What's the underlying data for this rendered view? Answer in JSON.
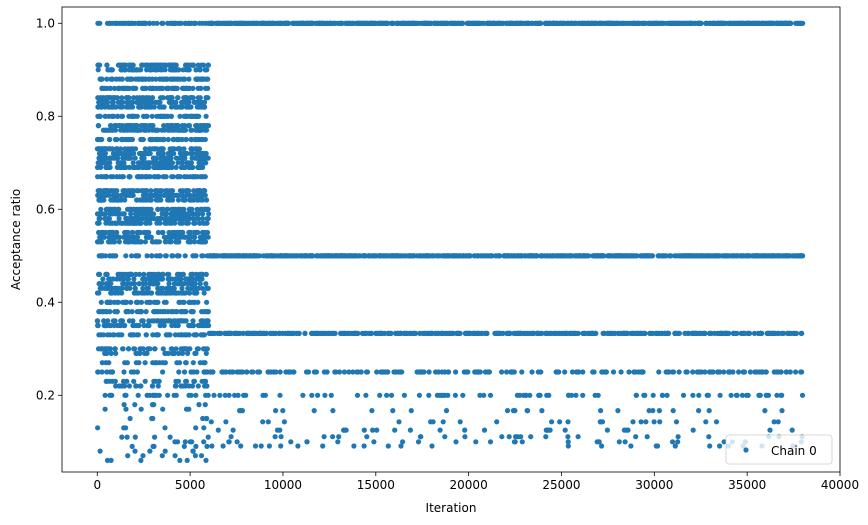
{
  "chart_data": {
    "type": "scatter",
    "xlabel": "Iteration",
    "ylabel": "Acceptance ratio",
    "xlim": [
      -1900,
      40000
    ],
    "ylim": [
      0.035,
      1.035
    ],
    "xticks": [
      0,
      5000,
      10000,
      15000,
      20000,
      25000,
      30000,
      35000,
      40000
    ],
    "xtick_labels": [
      "0",
      "5000",
      "10000",
      "15000",
      "20000",
      "25000",
      "30000",
      "35000",
      "40000"
    ],
    "yticks": [
      0.2,
      0.4,
      0.6,
      0.8,
      1.0
    ],
    "ytick_labels": [
      "0.2",
      "0.4",
      "0.6",
      "0.8",
      "1.0"
    ],
    "grid": false,
    "legend_position": "bottom-right",
    "marker_color": "#1f77b4",
    "series": [
      {
        "name": "Chain 0",
        "phases": [
          {
            "x_range": [
              0,
              6000
            ],
            "levels": [
              1.0,
              0.91,
              0.9,
              0.88,
              0.86,
              0.84,
              0.83,
              0.82,
              0.8,
              0.78,
              0.77,
              0.75,
              0.73,
              0.72,
              0.71,
              0.7,
              0.69,
              0.67,
              0.64,
              0.63,
              0.62,
              0.6,
              0.59,
              0.58,
              0.57,
              0.55,
              0.54,
              0.53,
              0.5,
              0.46,
              0.45,
              0.44,
              0.43,
              0.42,
              0.4,
              0.38,
              0.36,
              0.35,
              0.33,
              0.3,
              0.29,
              0.27,
              0.25,
              0.23,
              0.22,
              0.2,
              0.18,
              0.17,
              0.15,
              0.13,
              0.11,
              0.1,
              0.09,
              0.08,
              0.07,
              0.06
            ]
          },
          {
            "x_range": [
              6000,
              38000
            ],
            "levels": [
              1.0,
              0.5,
              0.333,
              0.25,
              0.2,
              0.167,
              0.143,
              0.125,
              0.111,
              0.1,
              0.091
            ]
          }
        ]
      }
    ]
  }
}
